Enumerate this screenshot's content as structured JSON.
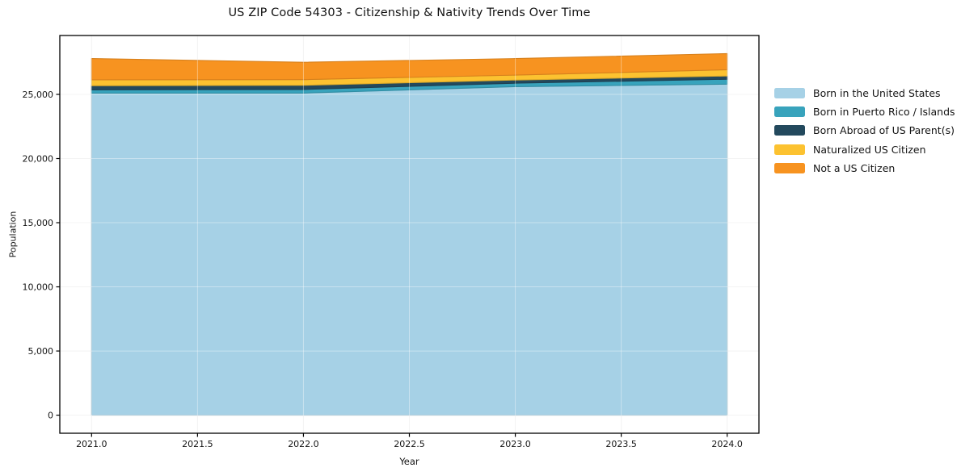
{
  "chart_data": {
    "type": "area",
    "stacked": true,
    "title": "US ZIP Code 54303 - Citizenship & Nativity Trends Over Time",
    "xlabel": "Year",
    "ylabel": "Population",
    "x": [
      2021,
      2022,
      2023,
      2024
    ],
    "series": [
      {
        "name": "Born in the United States",
        "color": "#a6d1e6",
        "values": [
          25100,
          25100,
          25600,
          25800
        ]
      },
      {
        "name": "Born in Puerto Rico / Islands",
        "color": "#38a3bc",
        "values": [
          250,
          280,
          270,
          380
        ]
      },
      {
        "name": "Born Abroad of US Parent(s)",
        "color": "#23495d",
        "values": [
          330,
          330,
          250,
          250
        ]
      },
      {
        "name": "Naturalized US Citizen",
        "color": "#fcc230",
        "values": [
          460,
          440,
          380,
          490
        ]
      },
      {
        "name": "Not a US Citizen",
        "color": "#f79320",
        "values": [
          1650,
          1350,
          1290,
          1260
        ]
      }
    ],
    "totals": [
      27790,
      27500,
      27790,
      28180
    ],
    "x_ticks": [
      2021.0,
      2021.5,
      2022.0,
      2022.5,
      2023.0,
      2023.5,
      2024.0
    ],
    "x_tick_labels": [
      "2021.0",
      "2021.5",
      "2022.0",
      "2022.5",
      "2023.0",
      "2023.5",
      "2024.0"
    ],
    "y_ticks": [
      0,
      5000,
      10000,
      15000,
      20000,
      25000
    ],
    "y_tick_labels": [
      "0",
      "5,000",
      "10,000",
      "15,000",
      "20,000",
      "25,000"
    ],
    "xlim": [
      2020.85,
      2024.15
    ],
    "ylim": [
      -1409,
      29589
    ],
    "grid": true,
    "legend_position": "right-outside",
    "colors": {
      "spine": "#000000",
      "grid_under": "#ededed",
      "grid_over": "rgba(255,255,255,0.38)",
      "text": "#141414"
    }
  }
}
